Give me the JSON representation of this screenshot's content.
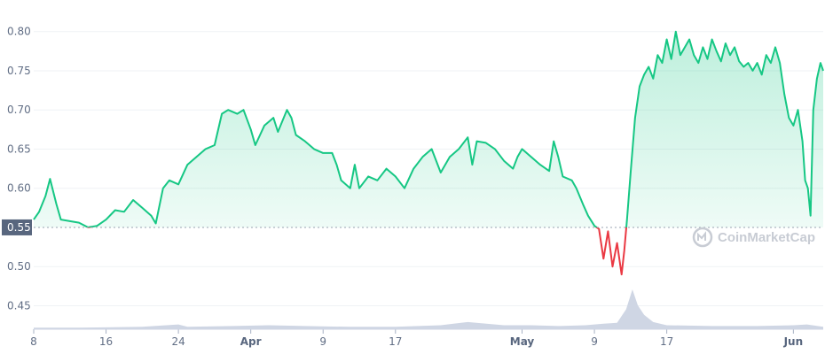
{
  "chart_data": {
    "type": "line",
    "watermark": "CoinMarketCap",
    "baseline": {
      "value": 0.55,
      "label": "0.55"
    },
    "ylim": [
      0.42,
      0.82
    ],
    "yticks": [
      "0.45",
      "0.50",
      "0.55",
      "0.60",
      "0.65",
      "0.70",
      "0.75",
      "0.80"
    ],
    "xticks": [
      {
        "day": 0,
        "label": "8",
        "bold": false
      },
      {
        "day": 8,
        "label": "16",
        "bold": false
      },
      {
        "day": 16,
        "label": "24",
        "bold": false
      },
      {
        "day": 24,
        "label": "Apr",
        "bold": true
      },
      {
        "day": 32,
        "label": "9",
        "bold": false
      },
      {
        "day": 40,
        "label": "17",
        "bold": false
      },
      {
        "day": 54,
        "label": "May",
        "bold": true
      },
      {
        "day": 62,
        "label": "9",
        "bold": false
      },
      {
        "day": 70,
        "label": "17",
        "bold": false
      },
      {
        "day": 84,
        "label": "Jun",
        "bold": true
      }
    ],
    "colors": {
      "up": "#16c784",
      "down": "#ea3943",
      "volume": "#cfd6e4",
      "grid": "#eff2f5"
    },
    "series": [
      {
        "points": [
          [
            0,
            0.56
          ],
          [
            0.6,
            0.57
          ],
          [
            1.3,
            0.59
          ],
          [
            1.8,
            0.612
          ],
          [
            2.5,
            0.58
          ],
          [
            3.0,
            0.56
          ],
          [
            4.0,
            0.558
          ],
          [
            5.0,
            0.556
          ],
          [
            6.0,
            0.55
          ],
          [
            7.0,
            0.552
          ],
          [
            8.0,
            0.56
          ],
          [
            9.0,
            0.572
          ],
          [
            10.0,
            0.57
          ],
          [
            11.0,
            0.585
          ],
          [
            12.0,
            0.575
          ],
          [
            13.0,
            0.565
          ],
          [
            13.5,
            0.555
          ],
          [
            14.3,
            0.6
          ],
          [
            15.0,
            0.61
          ],
          [
            16.0,
            0.605
          ],
          [
            17.0,
            0.63
          ],
          [
            18.0,
            0.64
          ],
          [
            19.0,
            0.65
          ],
          [
            20.0,
            0.655
          ],
          [
            20.8,
            0.695
          ],
          [
            21.5,
            0.7
          ],
          [
            22.5,
            0.695
          ],
          [
            23.2,
            0.7
          ],
          [
            24.0,
            0.675
          ],
          [
            24.5,
            0.655
          ],
          [
            25.5,
            0.68
          ],
          [
            26.5,
            0.69
          ],
          [
            27.0,
            0.672
          ],
          [
            28.0,
            0.7
          ],
          [
            28.5,
            0.69
          ],
          [
            29.0,
            0.668
          ],
          [
            30.0,
            0.66
          ],
          [
            31.0,
            0.65
          ],
          [
            32.0,
            0.645
          ],
          [
            33.0,
            0.645
          ],
          [
            33.5,
            0.63
          ],
          [
            34.0,
            0.61
          ],
          [
            35.0,
            0.6
          ],
          [
            35.5,
            0.63
          ],
          [
            36.0,
            0.6
          ],
          [
            37.0,
            0.615
          ],
          [
            38.0,
            0.61
          ],
          [
            39.0,
            0.625
          ],
          [
            40.0,
            0.615
          ],
          [
            41.0,
            0.6
          ],
          [
            42.0,
            0.625
          ],
          [
            43.0,
            0.64
          ],
          [
            44.0,
            0.65
          ],
          [
            45.0,
            0.62
          ],
          [
            46.0,
            0.64
          ],
          [
            47.0,
            0.65
          ],
          [
            48.0,
            0.665
          ],
          [
            48.5,
            0.63
          ],
          [
            49.0,
            0.66
          ],
          [
            50.0,
            0.658
          ],
          [
            51.0,
            0.65
          ],
          [
            52.0,
            0.635
          ],
          [
            53.0,
            0.625
          ],
          [
            53.5,
            0.64
          ],
          [
            54.0,
            0.65
          ],
          [
            55.0,
            0.64
          ],
          [
            56.0,
            0.63
          ],
          [
            57.0,
            0.622
          ],
          [
            57.5,
            0.66
          ],
          [
            58.0,
            0.64
          ],
          [
            58.5,
            0.615
          ],
          [
            59.5,
            0.61
          ],
          [
            60.0,
            0.6
          ],
          [
            60.8,
            0.578
          ],
          [
            61.3,
            0.565
          ],
          [
            62.0,
            0.552
          ],
          [
            62.5,
            0.548
          ],
          [
            63.0,
            0.51
          ],
          [
            63.5,
            0.545
          ],
          [
            64.0,
            0.5
          ],
          [
            64.5,
            0.53
          ],
          [
            65.0,
            0.49
          ],
          [
            65.3,
            0.52
          ],
          [
            65.6,
            0.56
          ],
          [
            66.0,
            0.62
          ],
          [
            66.5,
            0.69
          ],
          [
            67.0,
            0.73
          ],
          [
            67.5,
            0.745
          ],
          [
            68.0,
            0.755
          ],
          [
            68.5,
            0.74
          ],
          [
            69.0,
            0.77
          ],
          [
            69.5,
            0.76
          ],
          [
            70.0,
            0.79
          ],
          [
            70.5,
            0.765
          ],
          [
            71.0,
            0.8
          ],
          [
            71.5,
            0.77
          ],
          [
            72.0,
            0.78
          ],
          [
            72.5,
            0.79
          ],
          [
            73.0,
            0.77
          ],
          [
            73.5,
            0.76
          ],
          [
            74.0,
            0.78
          ],
          [
            74.5,
            0.765
          ],
          [
            75.0,
            0.79
          ],
          [
            75.5,
            0.775
          ],
          [
            76.0,
            0.762
          ],
          [
            76.5,
            0.785
          ],
          [
            77.0,
            0.77
          ],
          [
            77.5,
            0.78
          ],
          [
            78.0,
            0.762
          ],
          [
            78.5,
            0.755
          ],
          [
            79.0,
            0.76
          ],
          [
            79.5,
            0.75
          ],
          [
            80.0,
            0.76
          ],
          [
            80.5,
            0.745
          ],
          [
            81.0,
            0.77
          ],
          [
            81.5,
            0.76
          ],
          [
            82.0,
            0.78
          ],
          [
            82.5,
            0.76
          ],
          [
            83.0,
            0.72
          ],
          [
            83.5,
            0.69
          ],
          [
            84.0,
            0.68
          ],
          [
            84.5,
            0.7
          ],
          [
            85.0,
            0.66
          ],
          [
            85.3,
            0.61
          ],
          [
            85.6,
            0.6
          ],
          [
            85.9,
            0.565
          ],
          [
            86.2,
            0.7
          ],
          [
            86.6,
            0.74
          ],
          [
            87.0,
            0.76
          ],
          [
            87.3,
            0.75
          ]
        ]
      }
    ],
    "volume": {
      "points": [
        [
          0,
          0.02
        ],
        [
          5,
          0.02
        ],
        [
          12,
          0.03
        ],
        [
          16,
          0.06
        ],
        [
          17,
          0.03
        ],
        [
          22,
          0.04
        ],
        [
          26,
          0.05
        ],
        [
          30,
          0.04
        ],
        [
          35,
          0.03
        ],
        [
          40,
          0.03
        ],
        [
          45,
          0.05
        ],
        [
          48,
          0.09
        ],
        [
          52,
          0.05
        ],
        [
          55,
          0.05
        ],
        [
          58,
          0.04
        ],
        [
          61,
          0.05
        ],
        [
          63,
          0.07
        ],
        [
          64.5,
          0.08
        ],
        [
          65.5,
          0.25
        ],
        [
          66.2,
          0.5
        ],
        [
          66.8,
          0.3
        ],
        [
          67.5,
          0.18
        ],
        [
          68.5,
          0.09
        ],
        [
          70,
          0.05
        ],
        [
          75,
          0.04
        ],
        [
          80,
          0.04
        ],
        [
          84,
          0.05
        ],
        [
          85.5,
          0.06
        ],
        [
          87.3,
          0.03
        ]
      ]
    }
  }
}
